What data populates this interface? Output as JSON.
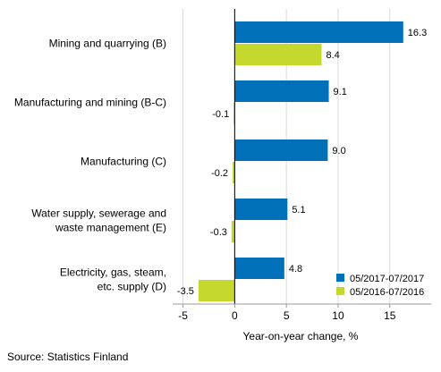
{
  "chart_data": {
    "type": "bar",
    "orientation": "horizontal",
    "categories": [
      [
        "Mining and quarrying (B)"
      ],
      [
        "Manufacturing and mining (B-C)"
      ],
      [
        "Manufacturing (C)"
      ],
      [
        "Water supply, sewerage and",
        "waste management (E)"
      ],
      [
        "Electricity, gas, steam,",
        "etc. supply (D)"
      ]
    ],
    "series": [
      {
        "name": "05/2017-07/2017",
        "color": "#0070b8",
        "values": [
          16.3,
          9.1,
          9.0,
          5.1,
          4.8
        ]
      },
      {
        "name": "05/2016-07/2016",
        "color": "#c4d82e",
        "values": [
          8.4,
          -0.1,
          -0.2,
          -0.3,
          -3.5
        ]
      }
    ],
    "xlabel": "Year-on-year change, %",
    "xlim": [
      -6,
      19
    ],
    "xticks": [
      -5,
      0,
      5,
      10,
      15
    ],
    "grid": true,
    "legend_position": "bottom-right"
  },
  "source": "Source: Statistics Finland"
}
